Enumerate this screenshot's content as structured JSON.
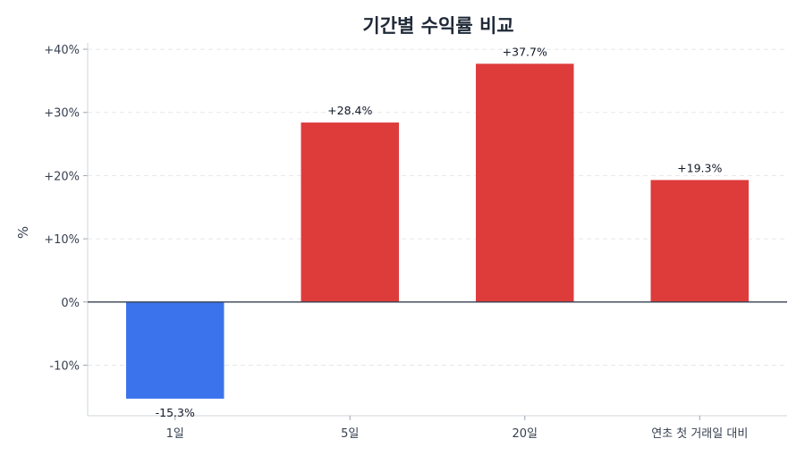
{
  "chart_data": {
    "type": "bar",
    "title": "기간별 수익률 비교",
    "xlabel": "",
    "ylabel": "%",
    "categories": [
      "1일",
      "5일",
      "20일",
      "연초 첫 거래일 대비"
    ],
    "values": [
      -15.3,
      28.4,
      37.7,
      19.3
    ],
    "data_labels": [
      "-15.3%",
      "+28.4%",
      "+37.7%",
      "+19.3%"
    ],
    "ylim": [
      -18,
      41
    ],
    "yticks": [
      -10,
      0,
      10,
      20,
      30,
      40
    ],
    "ytick_labels": [
      "-10%",
      "0%",
      "+10%",
      "+20%",
      "+30%",
      "+40%"
    ],
    "grid": true,
    "legend": false,
    "colors": {
      "positive": "#de3b3b",
      "negative": "#3b73ec"
    }
  }
}
